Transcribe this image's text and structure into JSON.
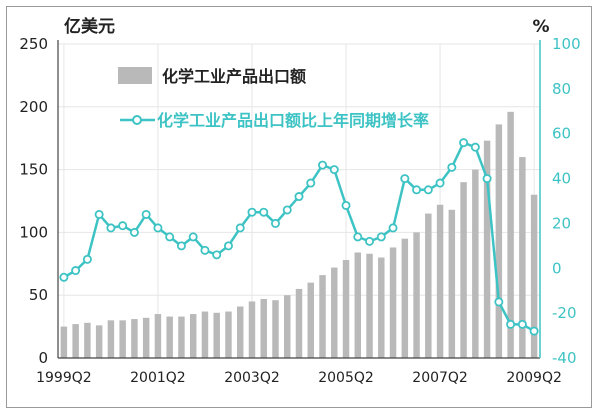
{
  "chart_data": {
    "type": "bar+line",
    "left_axis_unit": "亿美元",
    "right_axis_unit": "%",
    "y_left_ticks": [
      0,
      50,
      100,
      150,
      200,
      250
    ],
    "y_right_ticks": [
      -40,
      -20,
      0,
      20,
      40,
      60,
      80,
      100
    ],
    "ylim_left": [
      0,
      250
    ],
    "ylim_right": [
      -40,
      100
    ],
    "x_tick_labels": [
      "1999Q2",
      "2001Q2",
      "2003Q2",
      "2005Q2",
      "2007Q2",
      "2009Q2"
    ],
    "x_tick_indices": [
      0,
      8,
      16,
      24,
      32,
      40
    ],
    "grid": true,
    "legend_placement": "top-left",
    "colors": {
      "bar": "#b9b9b9",
      "line": "#3ec3c4",
      "marker_fill": "#ffffff",
      "grid": "#e6e6e6"
    },
    "categories": [
      "1999Q2",
      "1999Q3",
      "1999Q4",
      "2000Q1",
      "2000Q2",
      "2000Q3",
      "2000Q4",
      "2001Q1",
      "2001Q2",
      "2001Q3",
      "2001Q4",
      "2002Q1",
      "2002Q2",
      "2002Q3",
      "2002Q4",
      "2003Q1",
      "2003Q2",
      "2003Q3",
      "2003Q4",
      "2004Q1",
      "2004Q2",
      "2004Q3",
      "2004Q4",
      "2005Q1",
      "2005Q2",
      "2005Q3",
      "2005Q4",
      "2006Q1",
      "2006Q2",
      "2006Q3",
      "2006Q4",
      "2007Q1",
      "2007Q2",
      "2007Q3",
      "2007Q4",
      "2008Q1",
      "2008Q2",
      "2008Q3",
      "2008Q4",
      "2009Q1",
      "2009Q2"
    ],
    "series": [
      {
        "name": "化学工业产品出口额",
        "kind": "bar",
        "axis": "left",
        "values": [
          25,
          27,
          28,
          26,
          30,
          30,
          31,
          32,
          35,
          33,
          33,
          35,
          37,
          36,
          37,
          41,
          45,
          47,
          46,
          50,
          55,
          60,
          66,
          72,
          78,
          84,
          83,
          80,
          88,
          95,
          100,
          115,
          122,
          118,
          140,
          150,
          173,
          186,
          196,
          160,
          130
        ]
      },
      {
        "name": "化学工业产品出口额比上年同期增长率",
        "kind": "line",
        "axis": "right",
        "values": [
          -4,
          -1,
          4,
          24,
          18,
          19,
          16,
          24,
          18,
          14,
          10,
          14,
          8,
          6,
          10,
          18,
          25,
          25,
          20,
          26,
          32,
          38,
          46,
          44,
          28,
          14,
          12,
          14,
          18,
          40,
          35,
          35,
          38,
          45,
          56,
          54,
          40,
          -15,
          -25,
          -25,
          -28
        ]
      }
    ]
  }
}
